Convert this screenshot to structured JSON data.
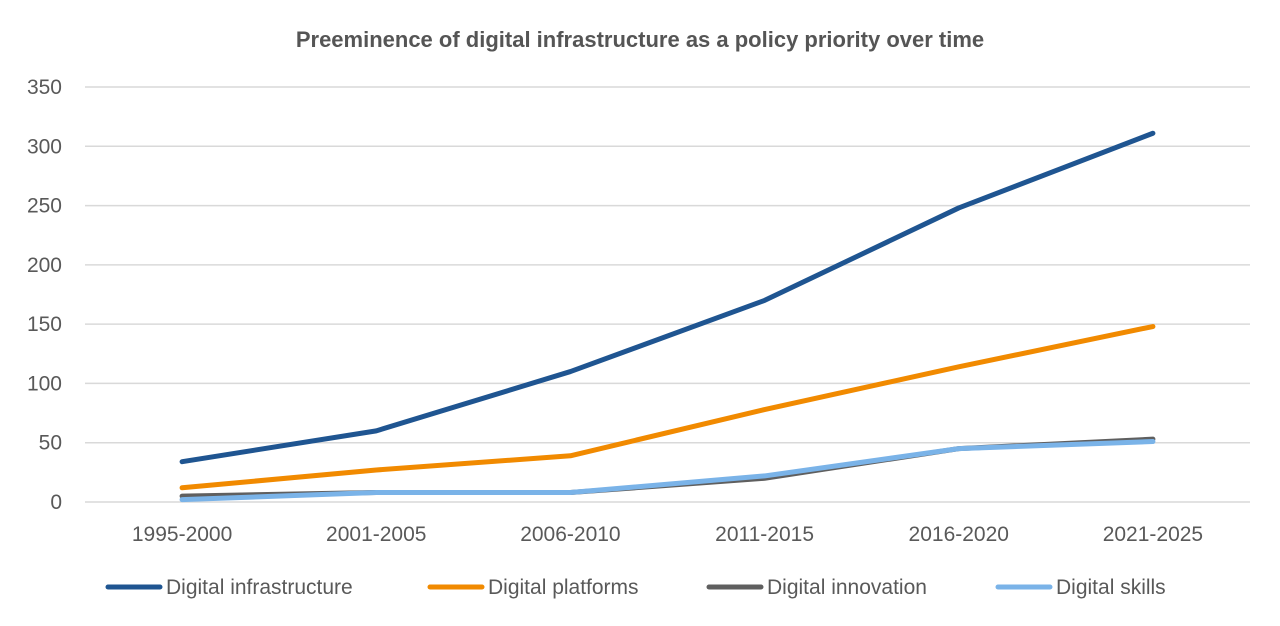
{
  "chart_data": {
    "type": "line",
    "title": "Preeminence of digital infrastructure as a policy priority over time",
    "xlabel": "",
    "ylabel": "",
    "categories": [
      "1995-2000",
      "2001-2005",
      "2006-2010",
      "2011-2015",
      "2016-2020",
      "2021-2025"
    ],
    "ylim": [
      0,
      350
    ],
    "yticks": [
      0,
      50,
      100,
      150,
      200,
      250,
      300,
      350
    ],
    "grid": true,
    "legend_position": "bottom",
    "series": [
      {
        "name": "Digital infrastructure",
        "color": "#1f5591",
        "values": [
          34,
          60,
          110,
          170,
          248,
          311
        ]
      },
      {
        "name": "Digital platforms",
        "color": "#f18a00",
        "values": [
          12,
          27,
          39,
          78,
          114,
          148
        ]
      },
      {
        "name": "Digital innovation",
        "color": "#5f5f5f",
        "values": [
          5,
          8,
          8,
          20,
          45,
          53
        ]
      },
      {
        "name": "Digital skills",
        "color": "#7ab3e8",
        "values": [
          2,
          8,
          8,
          22,
          45,
          51
        ]
      }
    ]
  }
}
